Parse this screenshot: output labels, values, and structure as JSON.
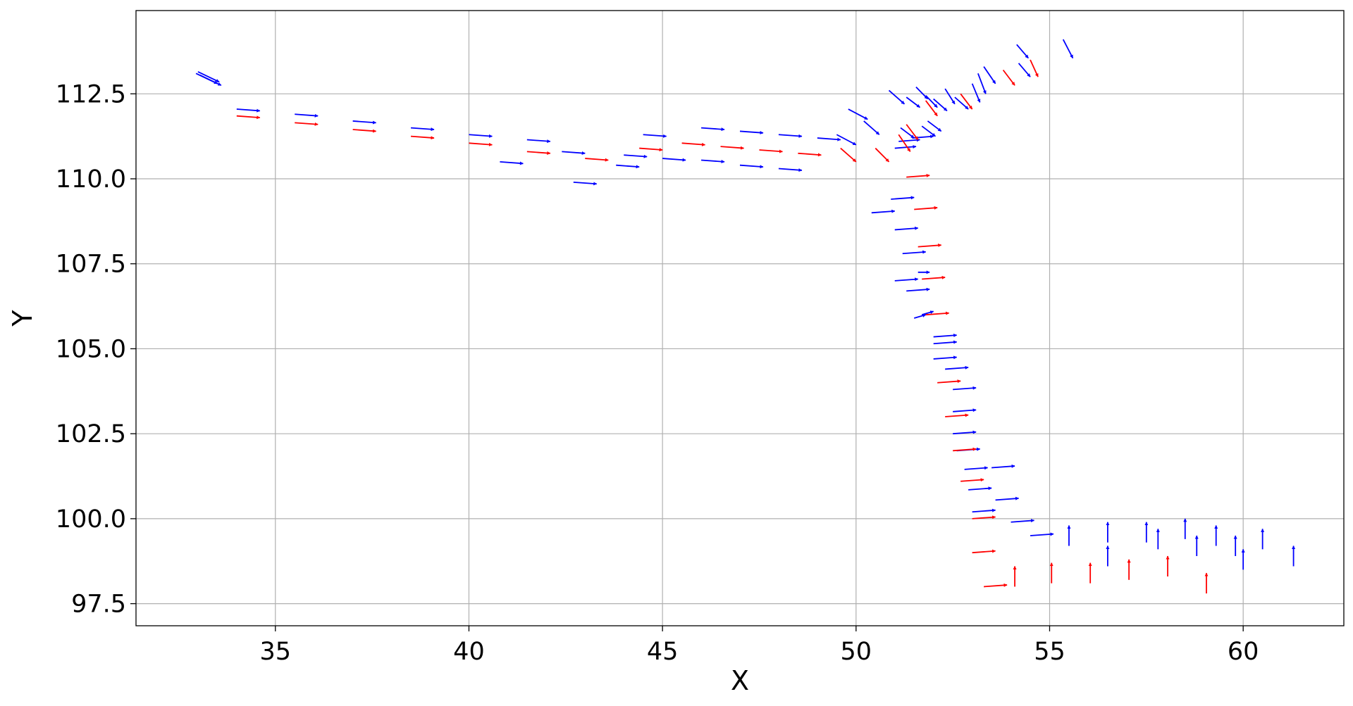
{
  "chart_data": {
    "type": "quiver",
    "title": "",
    "xlabel": "X",
    "ylabel": "Y",
    "xlim": [
      31.4,
      62.6
    ],
    "ylim": [
      96.85,
      114.95
    ],
    "xticks": [
      35,
      40,
      45,
      50,
      55,
      60
    ],
    "yticks": [
      97.5,
      100.0,
      102.5,
      105.0,
      107.5,
      110.0,
      112.5
    ],
    "xtick_labels": [
      "35",
      "40",
      "45",
      "50",
      "55",
      "60"
    ],
    "ytick_labels": [
      "97.5",
      "100.0",
      "102.5",
      "105.0",
      "107.5",
      "110.0",
      "112.5"
    ],
    "grid": true,
    "legend": "none",
    "series": [
      {
        "color": "#0000ff",
        "vectors": [
          [
            33.05,
            113.05,
            0.55,
            -0.3
          ],
          [
            32.95,
            113.1,
            0.55,
            -0.3
          ],
          [
            33.0,
            113.15,
            0.55,
            -0.3
          ],
          [
            34.0,
            112.05,
            0.6,
            -0.05
          ],
          [
            35.5,
            111.9,
            0.6,
            -0.05
          ],
          [
            37.0,
            111.7,
            0.6,
            -0.05
          ],
          [
            38.5,
            111.5,
            0.6,
            -0.05
          ],
          [
            40.0,
            111.3,
            0.6,
            -0.05
          ],
          [
            41.5,
            111.15,
            0.6,
            -0.05
          ],
          [
            40.8,
            110.5,
            0.6,
            -0.05
          ],
          [
            42.4,
            110.8,
            0.6,
            -0.05
          ],
          [
            44.0,
            110.7,
            0.6,
            -0.05
          ],
          [
            43.8,
            110.4,
            0.6,
            -0.05
          ],
          [
            42.7,
            109.9,
            0.6,
            -0.05
          ],
          [
            44.5,
            111.3,
            0.6,
            -0.05
          ],
          [
            46.0,
            111.5,
            0.6,
            -0.05
          ],
          [
            47.0,
            111.4,
            0.6,
            -0.05
          ],
          [
            48.0,
            111.3,
            0.6,
            -0.05
          ],
          [
            45.0,
            110.6,
            0.6,
            -0.05
          ],
          [
            46.0,
            110.55,
            0.6,
            -0.05
          ],
          [
            47.0,
            110.4,
            0.6,
            -0.05
          ],
          [
            48.0,
            110.3,
            0.6,
            -0.05
          ],
          [
            49.0,
            111.2,
            0.6,
            -0.05
          ],
          [
            49.5,
            111.3,
            0.5,
            -0.3
          ],
          [
            49.8,
            112.05,
            0.5,
            -0.3
          ],
          [
            50.2,
            111.7,
            0.4,
            -0.4
          ],
          [
            50.85,
            112.6,
            0.4,
            -0.4
          ],
          [
            51.3,
            112.4,
            0.35,
            -0.3
          ],
          [
            51.15,
            111.5,
            0.35,
            -0.3
          ],
          [
            51.7,
            111.55,
            0.35,
            -0.3
          ],
          [
            51.85,
            111.7,
            0.35,
            -0.3
          ],
          [
            51.55,
            112.7,
            0.3,
            -0.35
          ],
          [
            51.8,
            112.45,
            0.3,
            -0.35
          ],
          [
            52.3,
            112.65,
            0.25,
            -0.45
          ],
          [
            52.0,
            112.35,
            0.35,
            -0.35
          ],
          [
            52.55,
            112.4,
            0.35,
            -0.35
          ],
          [
            53.0,
            112.8,
            0.2,
            -0.55
          ],
          [
            53.3,
            113.3,
            0.3,
            -0.5
          ],
          [
            53.15,
            113.1,
            0.2,
            -0.6
          ],
          [
            54.2,
            113.4,
            0.3,
            -0.4
          ],
          [
            54.15,
            113.95,
            0.3,
            -0.4
          ],
          [
            55.35,
            114.1,
            0.25,
            -0.55
          ],
          [
            51.45,
            111.2,
            0.55,
            0.05
          ],
          [
            51.0,
            110.9,
            0.55,
            0.05
          ],
          [
            51.1,
            111.1,
            0.55,
            0.05
          ],
          [
            50.9,
            109.4,
            0.6,
            0.05
          ],
          [
            50.4,
            109.0,
            0.6,
            0.05
          ],
          [
            51.0,
            108.5,
            0.6,
            0.05
          ],
          [
            51.2,
            107.8,
            0.6,
            0.05
          ],
          [
            51.6,
            107.25,
            0.3,
            0.0
          ],
          [
            51.0,
            107.0,
            0.6,
            0.05
          ],
          [
            51.3,
            106.7,
            0.6,
            0.05
          ],
          [
            51.7,
            106.0,
            0.3,
            0.1
          ],
          [
            51.5,
            105.9,
            0.3,
            0.1
          ],
          [
            52.0,
            105.35,
            0.6,
            0.05
          ],
          [
            52.0,
            105.15,
            0.6,
            0.05
          ],
          [
            52.0,
            104.7,
            0.6,
            0.05
          ],
          [
            52.3,
            104.4,
            0.6,
            0.05
          ],
          [
            52.5,
            103.8,
            0.6,
            0.05
          ],
          [
            52.5,
            103.15,
            0.6,
            0.05
          ],
          [
            52.5,
            102.5,
            0.6,
            0.05
          ],
          [
            52.6,
            102.0,
            0.6,
            0.05
          ],
          [
            52.8,
            101.45,
            0.6,
            0.05
          ],
          [
            52.9,
            100.85,
            0.6,
            0.05
          ],
          [
            53.0,
            100.2,
            0.6,
            0.05
          ],
          [
            53.5,
            101.5,
            0.6,
            0.05
          ],
          [
            53.6,
            100.55,
            0.6,
            0.05
          ],
          [
            54.0,
            99.9,
            0.6,
            0.05
          ],
          [
            54.5,
            99.5,
            0.6,
            0.05
          ],
          [
            55.5,
            99.2,
            0.0,
            0.6
          ],
          [
            56.5,
            99.3,
            0.0,
            0.6
          ],
          [
            56.5,
            98.6,
            0.0,
            0.6
          ],
          [
            57.5,
            99.3,
            0.0,
            0.6
          ],
          [
            57.8,
            99.1,
            0.0,
            0.6
          ],
          [
            58.5,
            99.4,
            0.0,
            0.6
          ],
          [
            58.8,
            98.9,
            0.0,
            0.6
          ],
          [
            59.3,
            99.2,
            0.0,
            0.6
          ],
          [
            59.8,
            98.9,
            0.0,
            0.6
          ],
          [
            60.0,
            98.5,
            0.0,
            0.6
          ],
          [
            60.5,
            99.1,
            0.0,
            0.6
          ],
          [
            61.3,
            98.6,
            0.0,
            0.6
          ]
        ]
      },
      {
        "color": "#ff0000",
        "vectors": [
          [
            34.0,
            111.85,
            0.6,
            -0.05
          ],
          [
            35.5,
            111.65,
            0.6,
            -0.05
          ],
          [
            37.0,
            111.45,
            0.6,
            -0.05
          ],
          [
            38.5,
            111.25,
            0.6,
            -0.05
          ],
          [
            40.0,
            111.05,
            0.6,
            -0.05
          ],
          [
            41.5,
            110.8,
            0.6,
            -0.05
          ],
          [
            43.0,
            110.6,
            0.6,
            -0.05
          ],
          [
            44.4,
            110.9,
            0.6,
            -0.05
          ],
          [
            45.5,
            111.05,
            0.6,
            -0.05
          ],
          [
            46.5,
            110.95,
            0.6,
            -0.05
          ],
          [
            47.5,
            110.85,
            0.6,
            -0.05
          ],
          [
            48.5,
            110.75,
            0.6,
            -0.05
          ],
          [
            49.6,
            110.9,
            0.4,
            -0.4
          ],
          [
            50.5,
            110.9,
            0.35,
            -0.4
          ],
          [
            51.1,
            111.3,
            0.3,
            -0.5
          ],
          [
            51.3,
            111.6,
            0.3,
            -0.45
          ],
          [
            51.8,
            112.3,
            0.3,
            -0.45
          ],
          [
            52.7,
            112.5,
            0.3,
            -0.45
          ],
          [
            53.8,
            113.2,
            0.3,
            -0.45
          ],
          [
            54.5,
            113.5,
            0.2,
            -0.5
          ],
          [
            51.3,
            110.05,
            0.6,
            0.05
          ],
          [
            51.5,
            109.1,
            0.6,
            0.05
          ],
          [
            51.6,
            108.0,
            0.6,
            0.05
          ],
          [
            51.7,
            107.05,
            0.6,
            0.05
          ],
          [
            51.8,
            106.0,
            0.6,
            0.05
          ],
          [
            52.1,
            104.0,
            0.6,
            0.05
          ],
          [
            52.3,
            103.0,
            0.6,
            0.05
          ],
          [
            52.5,
            102.0,
            0.6,
            0.05
          ],
          [
            52.7,
            101.1,
            0.6,
            0.05
          ],
          [
            53.0,
            100.0,
            0.6,
            0.05
          ],
          [
            53.0,
            99.0,
            0.6,
            0.05
          ],
          [
            53.3,
            98.0,
            0.6,
            0.05
          ],
          [
            54.1,
            98.0,
            0.0,
            0.6
          ],
          [
            55.05,
            98.1,
            0.0,
            0.6
          ],
          [
            56.05,
            98.1,
            0.0,
            0.6
          ],
          [
            57.05,
            98.2,
            0.0,
            0.6
          ],
          [
            58.05,
            98.3,
            0.0,
            0.6
          ],
          [
            59.05,
            97.8,
            0.0,
            0.6
          ]
        ]
      }
    ]
  }
}
